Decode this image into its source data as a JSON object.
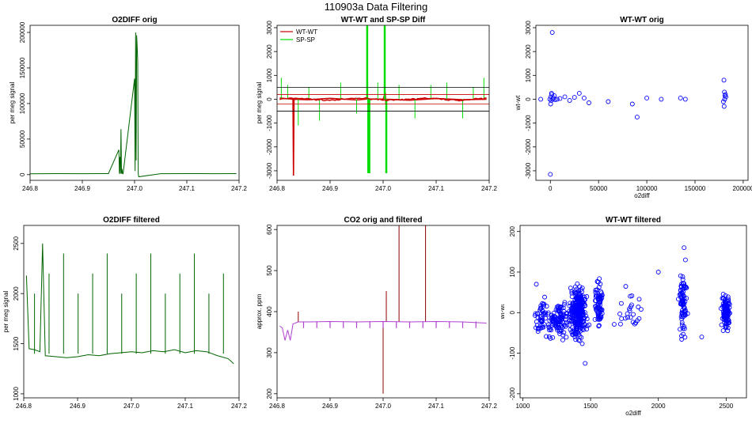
{
  "figure_title": "110903a   Data Filtering",
  "colors": {
    "green_trace": "#006400",
    "red_trace": "#cc0000",
    "bright_green": "#00dd00",
    "black": "#000000",
    "blue_points": "#0000ff",
    "purple_trace": "#b040d0",
    "dark_red_trace": "#8b0000"
  },
  "chart_data": [
    {
      "id": "o2diff-orig",
      "type": "line",
      "title": "O2DIFF orig",
      "xlabel": "",
      "ylabel": "per meg signal",
      "xlim": [
        246.8,
        247.2
      ],
      "ylim": [
        -8000,
        210000
      ],
      "x_ticks": [
        246.8,
        246.9,
        247.0,
        247.1,
        247.2
      ],
      "x_tick_labels": [
        "246.8",
        "246.9",
        "247.0",
        "247.1",
        "247.2"
      ],
      "y_ticks": [
        0,
        50000,
        100000,
        150000,
        200000
      ],
      "y_tick_labels": [
        "0",
        "50000",
        "100000",
        "150000",
        "200000"
      ],
      "series": [
        {
          "name": "O2DIFF",
          "color": "#006400",
          "x": [
            246.8,
            246.85,
            246.9,
            246.95,
            246.97,
            246.971,
            246.972,
            246.973,
            246.974,
            246.975,
            246.976,
            246.977,
            246.978,
            247.0,
            247.001,
            247.002,
            247.003,
            247.004,
            247.005,
            247.006,
            247.007,
            247.008,
            247.05,
            247.1,
            247.15,
            247.195
          ],
          "values": [
            1200,
            1400,
            1300,
            1500,
            35000,
            1200,
            25000,
            1300,
            64000,
            1500,
            8000,
            1400,
            1300,
            135000,
            5000,
            200000,
            20000,
            196000,
            180000,
            160000,
            1500,
            -3000,
            1300,
            1500,
            1300,
            1400
          ]
        }
      ]
    },
    {
      "id": "wtwt-spsp-diff",
      "type": "line",
      "title": "WT-WT and SP-SP Diff",
      "xlabel": "",
      "ylabel": "per meg signal",
      "xlim": [
        246.8,
        247.2
      ],
      "ylim": [
        -3400,
        3100
      ],
      "x_ticks": [
        246.8,
        246.9,
        247.0,
        247.1,
        247.2
      ],
      "x_tick_labels": [
        "246.8",
        "246.9",
        "247.0",
        "247.1",
        "247.2"
      ],
      "y_ticks": [
        -3000,
        -2000,
        -1000,
        0,
        1000,
        2000,
        3000
      ],
      "y_tick_labels": [
        "-3000",
        "-2000",
        "-1000",
        "0",
        "1000",
        "2000",
        "3000"
      ],
      "legend": [
        "WT-WT",
        "SP-SP"
      ],
      "legend_position": "top-left",
      "hlines": [
        500,
        200,
        -200,
        -500
      ],
      "series": [
        {
          "name": "WT-WT",
          "color": "#cc0000",
          "x": [
            246.805,
            246.83,
            246.831,
            246.832,
            246.86,
            246.9,
            246.95,
            246.97,
            247.0,
            247.004,
            247.005,
            247.006,
            247.05,
            247.1,
            247.15,
            247.195
          ],
          "values": [
            50,
            0,
            -3200,
            0,
            -20,
            40,
            -30,
            10,
            0,
            280,
            -200,
            0,
            -40,
            30,
            -20,
            0
          ]
        },
        {
          "name": "SP-SP",
          "color": "#00dd00",
          "spikes_x": [
            246.808,
            246.82,
            246.84,
            246.86,
            246.88,
            246.92,
            246.95,
            246.97,
            246.972,
            246.974,
            246.99,
            247.003,
            247.006,
            247.03,
            247.06,
            247.09,
            247.12,
            247.15,
            247.17,
            247.19
          ],
          "spikes_y": [
            900,
            600,
            -1100,
            500,
            -900,
            700,
            -600,
            3100,
            -3100,
            -3100,
            700,
            3100,
            -3100,
            600,
            -800,
            600,
            700,
            -800,
            500,
            900
          ]
        }
      ]
    },
    {
      "id": "wtwt-orig",
      "type": "scatter",
      "title": "WT-WT orig",
      "xlabel": "o2diff",
      "ylabel": "wt-wt",
      "xlim": [
        -15000,
        205000
      ],
      "ylim": [
        -3400,
        3100
      ],
      "x_ticks": [
        0,
        50000,
        100000,
        150000,
        200000
      ],
      "x_tick_labels": [
        "0",
        "50000",
        "100000",
        "150000",
        "200000"
      ],
      "y_ticks": [
        -3000,
        -2000,
        -1000,
        0,
        1000,
        2000,
        3000
      ],
      "y_tick_labels": [
        "-3000",
        "-2000",
        "-1000",
        "0",
        "1000",
        "2000",
        "3000"
      ],
      "series": [
        {
          "name": "points",
          "color": "#0000ff",
          "x": [
            2000,
            0,
            500,
            1000,
            1500,
            -500,
            3000,
            5000,
            7000,
            10000,
            15000,
            20000,
            25000,
            30000,
            35000,
            40000,
            60000,
            85000,
            90000,
            100000,
            115000,
            135000,
            140000,
            180000,
            180500,
            181000,
            179500,
            180200,
            180800,
            181500,
            182000,
            -10000,
            300,
            1200,
            2500,
            4000
          ],
          "values": [
            2800,
            -3150,
            100,
            -50,
            200,
            0,
            50,
            -20,
            0,
            30,
            100,
            -50,
            80,
            250,
            50,
            -150,
            -100,
            -200,
            -750,
            50,
            0,
            50,
            0,
            800,
            300,
            150,
            -100,
            -300,
            0,
            200,
            100,
            0,
            -200,
            250,
            0,
            150
          ]
        }
      ]
    },
    {
      "id": "o2diff-filtered",
      "type": "line",
      "title": "O2DIFF filtered",
      "xlabel": "",
      "ylabel": "per meg signal",
      "xlim": [
        246.8,
        247.2
      ],
      "ylim": [
        960,
        2680
      ],
      "x_ticks": [
        246.8,
        246.9,
        247.0,
        247.1,
        247.2
      ],
      "x_tick_labels": [
        "246.8",
        "246.9",
        "247.0",
        "247.1",
        "247.2"
      ],
      "y_ticks": [
        1000,
        1500,
        2000,
        2500
      ],
      "y_tick_labels": [
        "1000",
        "1500",
        "2000",
        "2500"
      ],
      "series": [
        {
          "name": "O2DIFF filtered",
          "color": "#006400",
          "x": [
            246.805,
            246.81,
            246.82,
            246.83,
            246.835,
            246.84,
            246.86,
            246.88,
            246.9,
            246.92,
            246.94,
            246.96,
            246.98,
            247.0,
            247.02,
            247.04,
            247.06,
            247.08,
            247.1,
            247.12,
            247.14,
            247.16,
            247.18,
            247.19
          ],
          "values": [
            2180,
            1450,
            1440,
            1420,
            2500,
            1380,
            1370,
            1360,
            1370,
            1390,
            1380,
            1400,
            1410,
            1420,
            1410,
            1430,
            1420,
            1440,
            1410,
            1430,
            1420,
            1380,
            1350,
            1300
          ]
        }
      ]
    },
    {
      "id": "co2-orig-filtered",
      "type": "line",
      "title": "CO2 orig and filtered",
      "xlabel": "",
      "ylabel": "approx. ppm",
      "xlim": [
        246.8,
        247.2
      ],
      "ylim": [
        190,
        610
      ],
      "x_ticks": [
        246.8,
        246.9,
        247.0,
        247.1,
        247.2
      ],
      "x_tick_labels": [
        "246.8",
        "246.9",
        "247.0",
        "247.1",
        "247.2"
      ],
      "y_ticks": [
        200,
        300,
        400,
        500,
        600
      ],
      "y_tick_labels": [
        "200",
        "300",
        "400",
        "500",
        "600"
      ],
      "series": [
        {
          "name": "CO2 orig",
          "color": "#8b0000",
          "spikes_x": [
            246.84,
            247.0,
            247.006,
            247.03,
            247.08
          ],
          "spikes_y": [
            400,
            200,
            450,
            610,
            610
          ]
        },
        {
          "name": "CO2 filtered",
          "color": "#b040d0",
          "x": [
            246.805,
            246.81,
            246.815,
            246.82,
            246.825,
            246.83,
            246.84,
            246.86,
            246.9,
            246.95,
            247.0,
            247.05,
            247.1,
            247.15,
            247.195
          ],
          "values": [
            365,
            360,
            330,
            355,
            330,
            370,
            375,
            375,
            376,
            375,
            376,
            375,
            376,
            375,
            372
          ]
        }
      ]
    },
    {
      "id": "wtwt-filtered",
      "type": "scatter",
      "title": "WT-WT filtered",
      "xlabel": "o2diff",
      "ylabel": "wt-wt",
      "xlim": [
        980,
        2650
      ],
      "ylim": [
        -210,
        215
      ],
      "x_ticks": [
        1000,
        1500,
        2000,
        2500
      ],
      "x_tick_labels": [
        "1000",
        "1500",
        "2000",
        "2500"
      ],
      "y_ticks": [
        -200,
        -100,
        0,
        100,
        200
      ],
      "y_tick_labels": [
        "-200",
        "-100",
        "0",
        "100",
        "200"
      ],
      "series": [
        {
          "name": "points",
          "color": "#0000ff",
          "clusters": [
            {
              "cx": 1130,
              "cy": -10,
              "sx": 25,
              "sy": 25,
              "n": 40
            },
            {
              "cx": 1260,
              "cy": -20,
              "sx": 60,
              "sy": 30,
              "n": 120
            },
            {
              "cx": 1410,
              "cy": 0,
              "sx": 40,
              "sy": 40,
              "n": 300
            },
            {
              "cx": 1560,
              "cy": 20,
              "sx": 20,
              "sy": 40,
              "n": 80
            },
            {
              "cx": 1780,
              "cy": 10,
              "sx": 80,
              "sy": 30,
              "n": 25
            },
            {
              "cx": 2180,
              "cy": 20,
              "sx": 20,
              "sy": 50,
              "n": 80
            },
            {
              "cx": 2500,
              "cy": 0,
              "sx": 20,
              "sy": 30,
              "n": 120
            }
          ],
          "outliers_x": [
            1100,
            1460,
            2190,
            2200,
            2000,
            2320
          ],
          "outliers_y": [
            70,
            -125,
            160,
            130,
            100,
            -60
          ]
        }
      ]
    }
  ]
}
